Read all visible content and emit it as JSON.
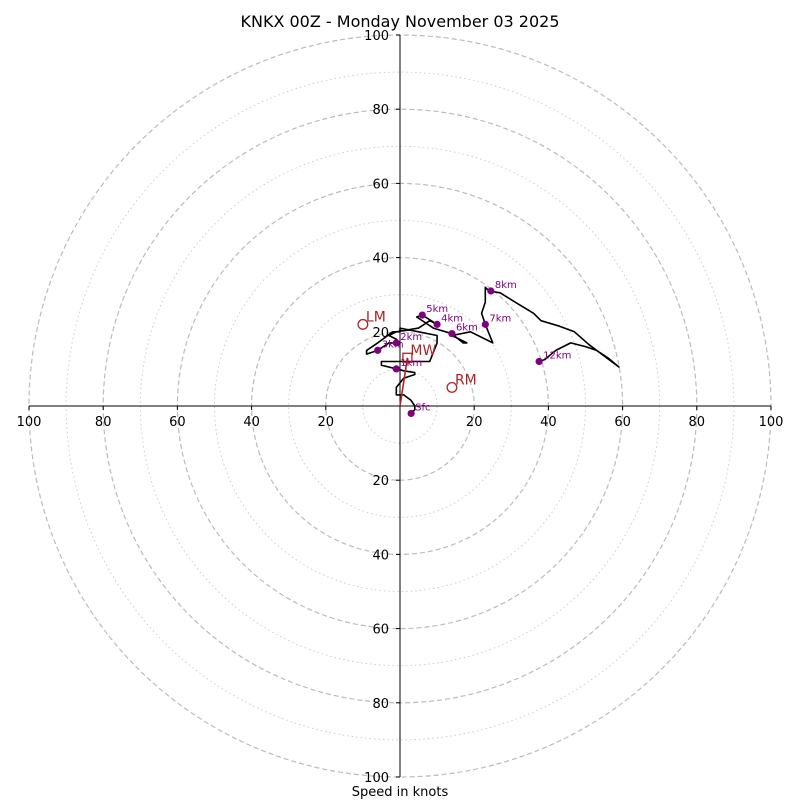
{
  "chart_data": {
    "type": "line",
    "title": "KNKX 00Z - Monday November 03 2025",
    "xlabel": "Speed in knots",
    "ylabel": "",
    "xlim": [
      -100,
      100
    ],
    "ylim": [
      -100,
      100
    ],
    "rings_major": [
      20,
      40,
      60,
      80,
      100
    ],
    "rings_minor": [
      10,
      30,
      50,
      70,
      90
    ],
    "x_ticks": [
      {
        "value": -100,
        "label": "100"
      },
      {
        "value": -80,
        "label": "80"
      },
      {
        "value": -60,
        "label": "60"
      },
      {
        "value": -40,
        "label": "40"
      },
      {
        "value": -20,
        "label": "20"
      },
      {
        "value": 20,
        "label": "20"
      },
      {
        "value": 40,
        "label": "40"
      },
      {
        "value": 60,
        "label": "60"
      },
      {
        "value": 80,
        "label": "80"
      },
      {
        "value": 100,
        "label": "100"
      }
    ],
    "y_ticks": [
      {
        "value": 100,
        "label": "100"
      },
      {
        "value": 80,
        "label": "80"
      },
      {
        "value": 60,
        "label": "60"
      },
      {
        "value": 40,
        "label": "40"
      },
      {
        "value": 20,
        "label": "20"
      },
      {
        "value": -20,
        "label": "20"
      },
      {
        "value": -40,
        "label": "40"
      },
      {
        "value": -60,
        "label": "60"
      },
      {
        "value": -80,
        "label": "80"
      },
      {
        "value": -100,
        "label": "100"
      }
    ],
    "hodograph_color": "#000000",
    "hodograph": [
      [
        3,
        -2
      ],
      [
        4,
        -1
      ],
      [
        4,
        0
      ],
      [
        3,
        1.5
      ],
      [
        1,
        3
      ],
      [
        -1,
        3
      ],
      [
        -1,
        4
      ],
      [
        -1,
        5
      ],
      [
        1,
        7.5
      ],
      [
        4,
        8.5
      ],
      [
        4,
        9
      ],
      [
        1,
        9.5
      ],
      [
        -1,
        10
      ],
      [
        -5,
        11
      ],
      [
        -5,
        12
      ],
      [
        0,
        12
      ],
      [
        3,
        12
      ],
      [
        8,
        12
      ],
      [
        10,
        17
      ],
      [
        10,
        19
      ],
      [
        5,
        20
      ],
      [
        0,
        21
      ],
      [
        0,
        20
      ],
      [
        -2,
        20
      ],
      [
        -6,
        17
      ],
      [
        -9,
        15
      ],
      [
        -9,
        14
      ],
      [
        -6,
        15
      ],
      [
        -3,
        17
      ],
      [
        0,
        17
      ],
      [
        -1,
        18
      ],
      [
        -3,
        19
      ],
      [
        -1,
        20
      ],
      [
        5,
        21
      ],
      [
        8,
        23
      ],
      [
        10,
        22
      ],
      [
        6,
        24.5
      ],
      [
        4.5,
        24
      ],
      [
        9,
        21
      ],
      [
        14,
        19.5
      ],
      [
        17,
        17
      ],
      [
        18,
        17
      ],
      [
        14,
        19
      ],
      [
        19,
        20
      ],
      [
        25,
        17
      ],
      [
        23,
        22
      ],
      [
        22,
        25
      ],
      [
        23,
        28
      ],
      [
        23,
        32
      ],
      [
        24,
        31
      ],
      [
        27,
        30.5
      ],
      [
        31,
        28
      ],
      [
        36,
        25
      ],
      [
        38,
        23
      ],
      [
        43,
        21.5
      ],
      [
        47,
        20
      ],
      [
        51,
        16.5
      ],
      [
        57,
        12
      ],
      [
        59,
        10.5
      ],
      [
        56,
        13
      ],
      [
        53,
        15
      ],
      [
        50,
        16
      ],
      [
        46,
        17
      ],
      [
        42,
        15
      ],
      [
        39,
        12.5
      ],
      [
        37.5,
        12
      ]
    ],
    "height_marker_color": "#800080",
    "height_markers": [
      {
        "label": "Sfc",
        "u": 3,
        "v": -2
      },
      {
        "label": "1km",
        "u": -1,
        "v": 10
      },
      {
        "label": "2km",
        "u": -1,
        "v": 17
      },
      {
        "label": "3km",
        "u": -6,
        "v": 15
      },
      {
        "label": "4km",
        "u": 10,
        "v": 22
      },
      {
        "label": "5km",
        "u": 6,
        "v": 24.5
      },
      {
        "label": "6km",
        "u": 14,
        "v": 19.5
      },
      {
        "label": "7km",
        "u": 23,
        "v": 22
      },
      {
        "label": "8km",
        "u": 24.5,
        "v": 31
      },
      {
        "label": "12km",
        "u": 37.5,
        "v": 12
      }
    ],
    "motion_color": "#b22222",
    "storm_motions": [
      {
        "label": "LM",
        "u": -10,
        "v": 22,
        "marker": "circle"
      },
      {
        "label": "RM",
        "u": 14,
        "v": 5,
        "marker": "circle"
      },
      {
        "label": "MW",
        "u": 2,
        "v": 13,
        "marker": "square"
      }
    ],
    "motion_line": [
      [
        0,
        0
      ],
      [
        2,
        13
      ]
    ]
  }
}
